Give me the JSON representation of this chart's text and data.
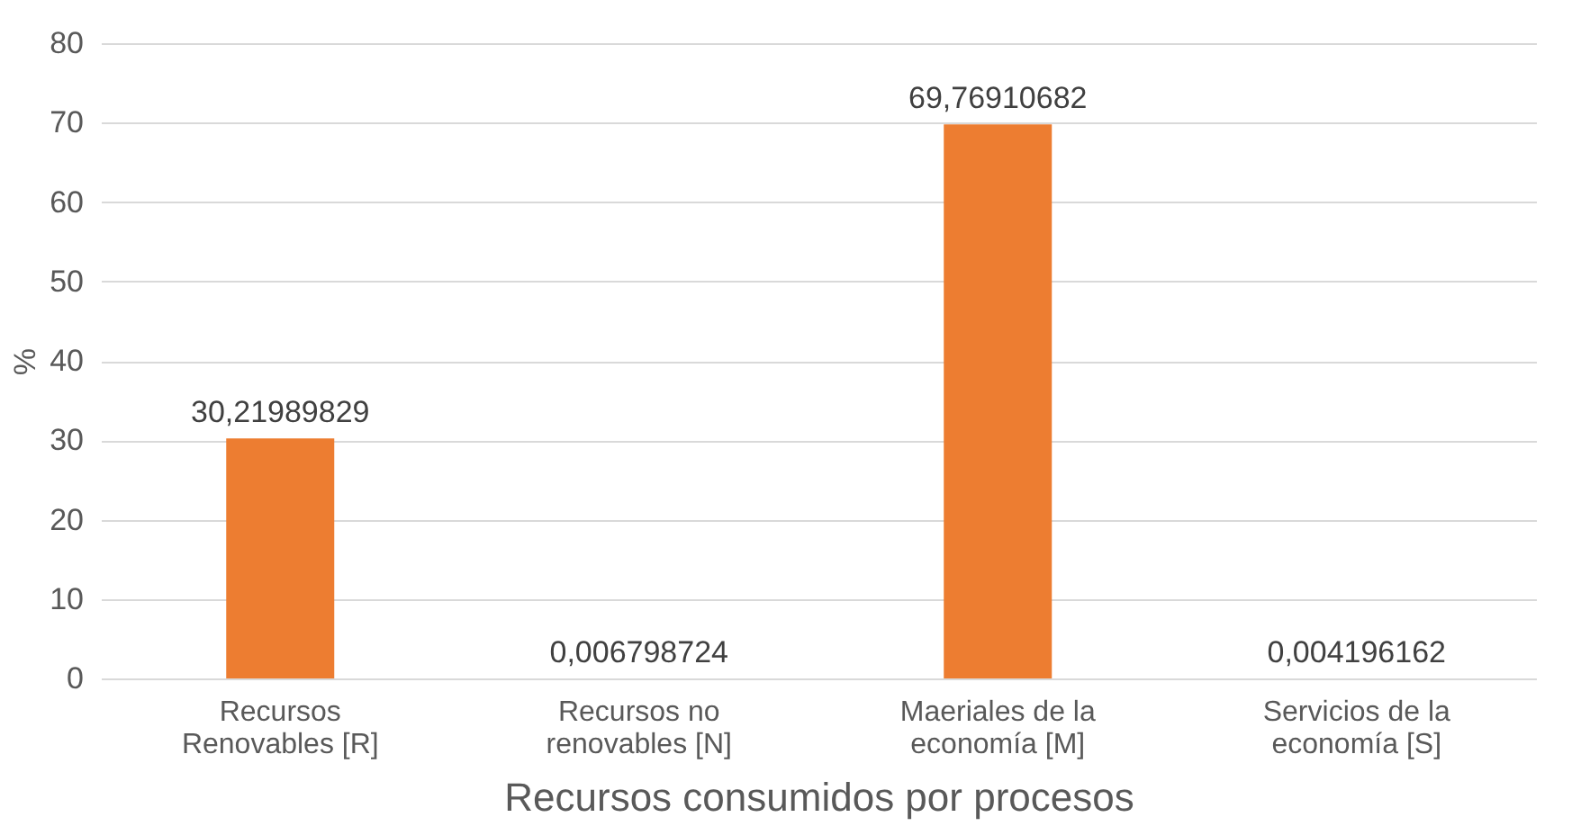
{
  "chart_data": {
    "type": "bar",
    "xlabel": "Recursos consumidos por procesos",
    "ylabel": "%",
    "categories": [
      "Recursos Renovables [R]",
      "Recursos no renovables [N]",
      "Maeriales de la economía [M]",
      "Servicios de la economía [S]"
    ],
    "values": [
      30.21989829,
      0.006798724,
      69.76910682,
      0.004196162
    ],
    "value_labels": [
      "30,21989829",
      "0,006798724",
      "69,76910682",
      "0,004196162"
    ],
    "color": "#ed7d31",
    "ylim": [
      0,
      80
    ],
    "yticks": [
      0,
      10,
      20,
      30,
      40,
      50,
      60,
      70,
      80
    ],
    "grid": "y"
  }
}
